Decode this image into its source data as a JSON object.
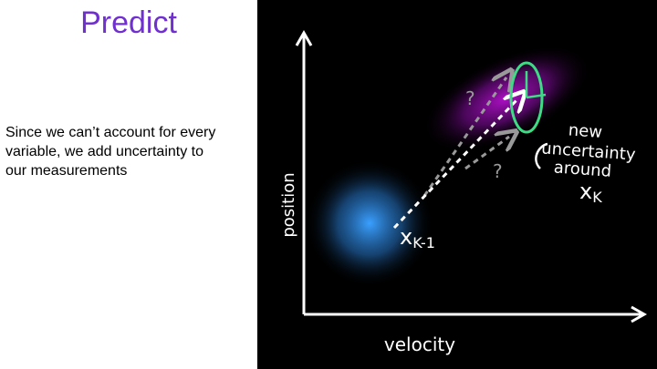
{
  "header": {
    "title": "Predict"
  },
  "body": {
    "lines": [
      "Since we can’t account for every",
      "variable, we add uncertainty to",
      "our measurements"
    ]
  },
  "figure": {
    "y_axis_label": "position",
    "x_axis_label": "velocity",
    "annotation": [
      "new",
      "uncertainty",
      "around"
    ],
    "state_previous": "x",
    "state_previous_sub": "K-1",
    "state_next": "x",
    "state_next_sub": "K",
    "unknowns": [
      "?",
      "?"
    ]
  }
}
